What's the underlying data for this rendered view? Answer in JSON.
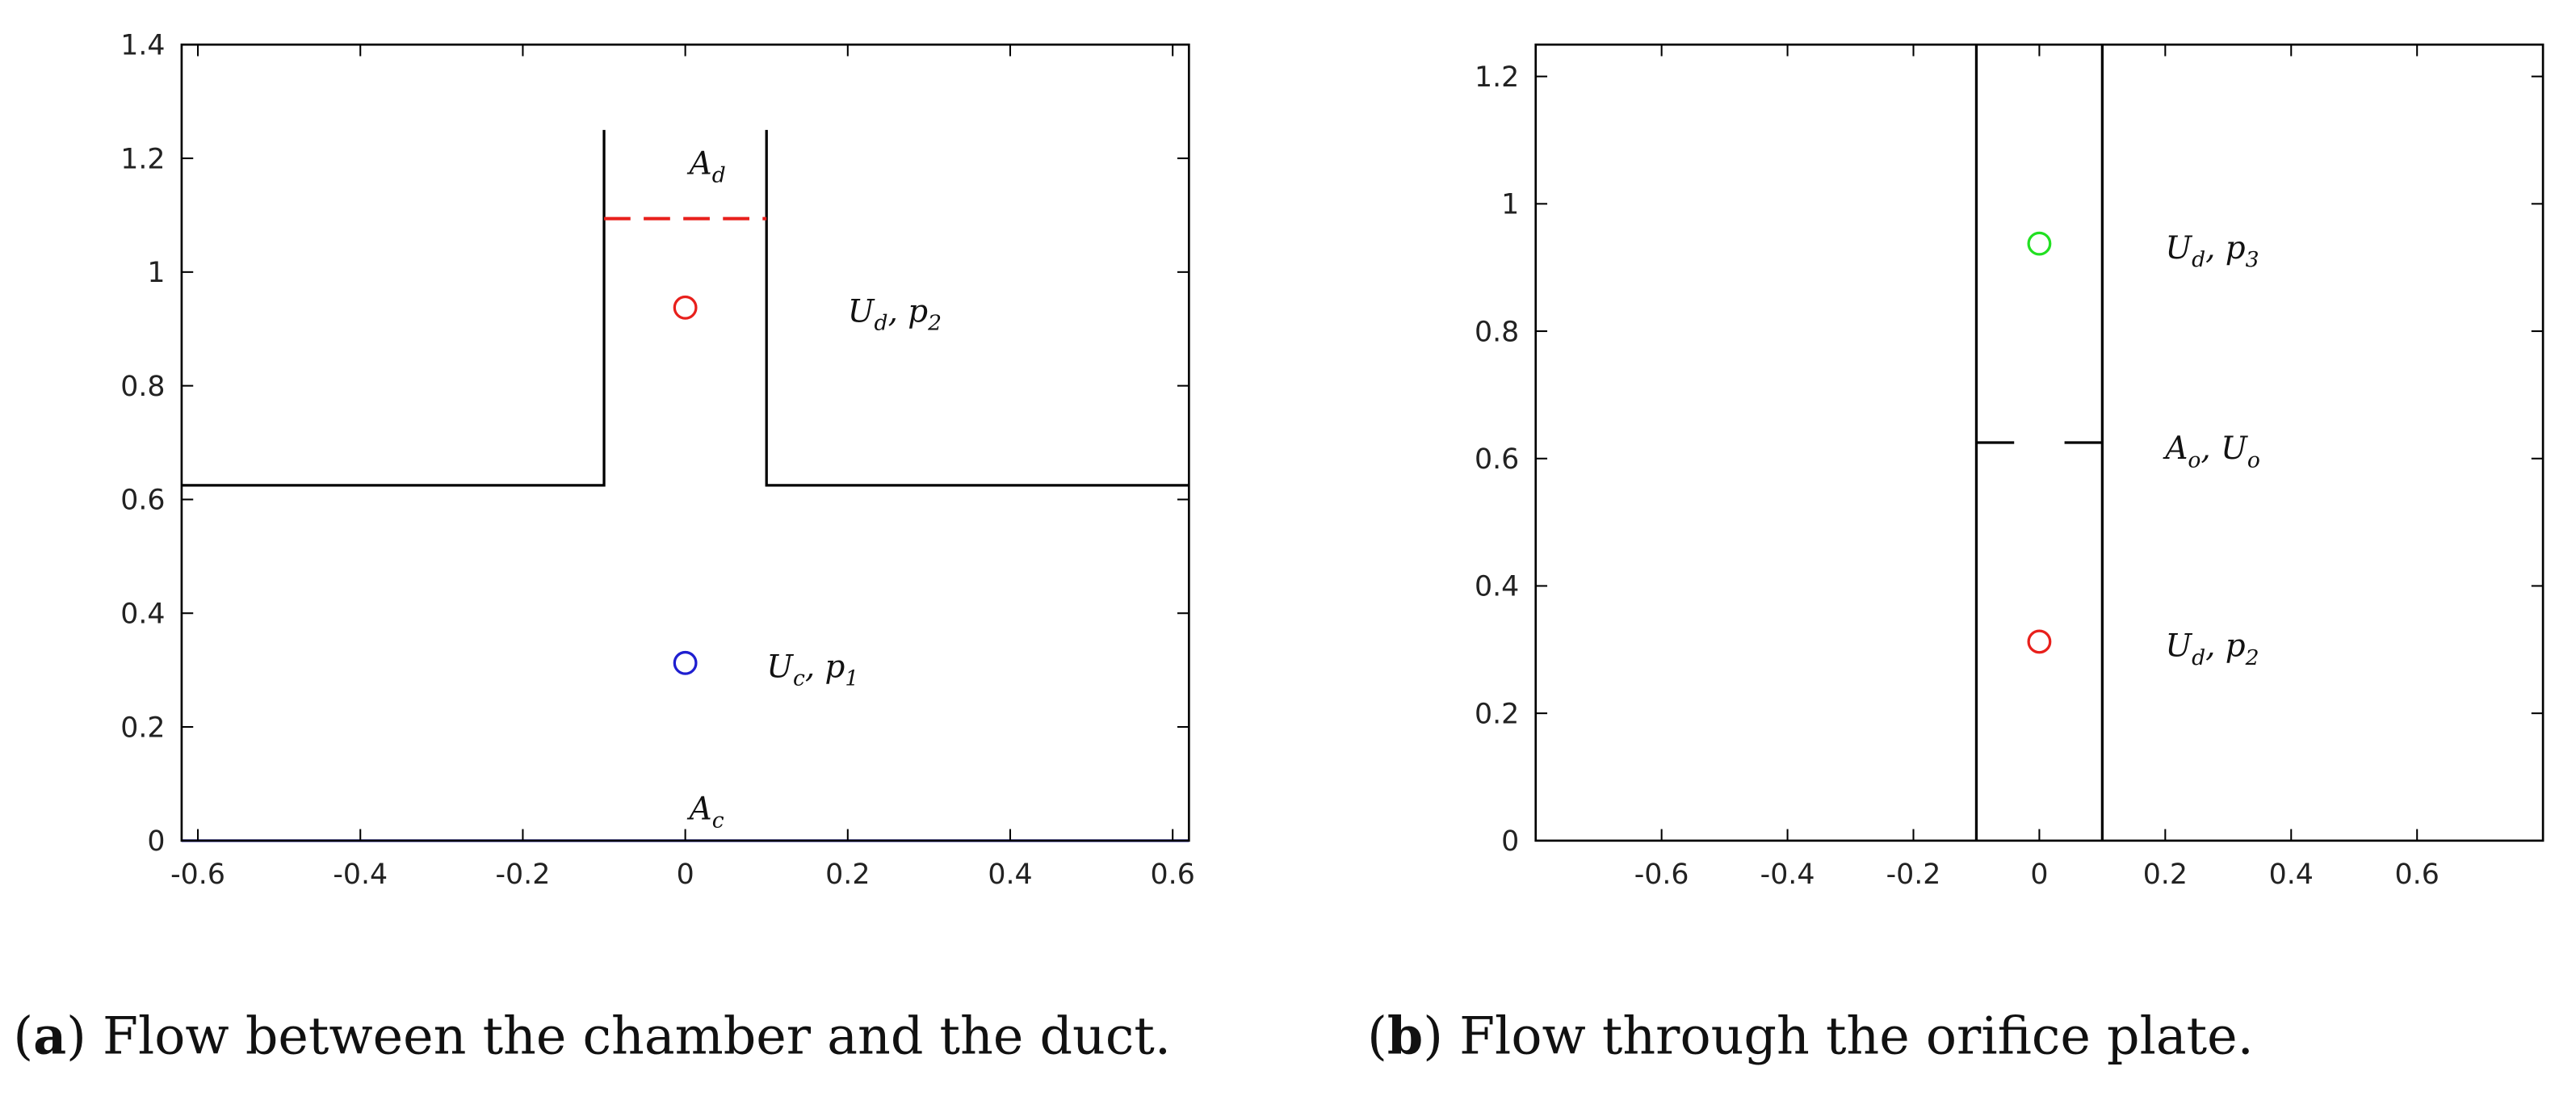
{
  "chart_data": [
    {
      "type": "line",
      "caption": {
        "label": "a",
        "text": " Flow between the chamber and the duct."
      },
      "xlim": [
        -0.62,
        0.62
      ],
      "ylim": [
        0,
        1.4
      ],
      "xticks": [
        -0.6,
        -0.4,
        -0.2,
        0,
        0.2,
        0.4,
        0.6
      ],
      "yticks": [
        0,
        0.2,
        0.4,
        0.6,
        0.8,
        1,
        1.2,
        1.4
      ],
      "lines": [
        {
          "x": [
            -0.62,
            -0.1,
            -0.1
          ],
          "y": [
            0.625,
            0.625,
            1.25
          ],
          "color": "#000000",
          "dashed": false
        },
        {
          "x": [
            0.1,
            0.1,
            0.62
          ],
          "y": [
            1.25,
            0.625,
            0.625
          ],
          "color": "#000000",
          "dashed": false
        },
        {
          "x": [
            -0.1,
            0.1
          ],
          "y": [
            1.094,
            1.094
          ],
          "color": "#e8201c",
          "dashed": true
        },
        {
          "x": [
            -0.62,
            0.62
          ],
          "y": [
            0,
            0
          ],
          "color": "#1f1fd0",
          "dashed": false
        }
      ],
      "markers": [
        {
          "x": 0,
          "y": 0.9375,
          "color": "#e8201c"
        },
        {
          "x": 0,
          "y": 0.3125,
          "color": "#1f1fd0"
        }
      ],
      "annotations": [
        {
          "x": 0.005,
          "y": 1.19,
          "parts": [
            {
              "t": "A"
            },
            {
              "sub": "d"
            }
          ]
        },
        {
          "x": 0.2,
          "y": 0.93,
          "parts": [
            {
              "t": "U"
            },
            {
              "sub": "d"
            },
            {
              "t": ", p"
            },
            {
              "sub": "2"
            }
          ]
        },
        {
          "x": 0.1,
          "y": 0.305,
          "parts": [
            {
              "t": "U"
            },
            {
              "sub": "c"
            },
            {
              "t": ", p"
            },
            {
              "sub": "1"
            }
          ]
        },
        {
          "x": 0.005,
          "y": 0.055,
          "parts": [
            {
              "t": "A"
            },
            {
              "sub": "c"
            }
          ]
        }
      ]
    },
    {
      "type": "line",
      "caption": {
        "label": "b",
        "text": " Flow through the orifice plate."
      },
      "xlim": [
        -0.8,
        0.8
      ],
      "ylim": [
        0,
        1.25
      ],
      "xticks": [
        -0.6,
        -0.4,
        -0.2,
        0,
        0.2,
        0.4,
        0.6
      ],
      "yticks": [
        0,
        0.2,
        0.4,
        0.6,
        0.8,
        1,
        1.2
      ],
      "lines": [
        {
          "x": [
            -0.1,
            -0.1
          ],
          "y": [
            0,
            1.25
          ],
          "color": "#000000",
          "dashed": false
        },
        {
          "x": [
            0.1,
            0.1
          ],
          "y": [
            0,
            1.25
          ],
          "color": "#000000",
          "dashed": false
        },
        {
          "x": [
            -0.1,
            -0.04
          ],
          "y": [
            0.625,
            0.625
          ],
          "color": "#000000",
          "dashed": false
        },
        {
          "x": [
            0.04,
            0.1
          ],
          "y": [
            0.625,
            0.625
          ],
          "color": "#000000",
          "dashed": false
        }
      ],
      "markers": [
        {
          "x": 0,
          "y": 0.9375,
          "color": "#22e022"
        },
        {
          "x": 0,
          "y": 0.3125,
          "color": "#e8201c"
        }
      ],
      "annotations": [
        {
          "x": 0.2,
          "y": 0.93,
          "parts": [
            {
              "t": "U"
            },
            {
              "sub": "d"
            },
            {
              "t": ", p"
            },
            {
              "sub": "3"
            }
          ]
        },
        {
          "x": 0.2,
          "y": 0.615,
          "parts": [
            {
              "t": "A"
            },
            {
              "sub": "o"
            },
            {
              "t": ", U"
            },
            {
              "sub": "o"
            }
          ]
        },
        {
          "x": 0.2,
          "y": 0.305,
          "parts": [
            {
              "t": "U"
            },
            {
              "sub": "d"
            },
            {
              "t": ", p"
            },
            {
              "sub": "2"
            }
          ]
        }
      ]
    }
  ]
}
